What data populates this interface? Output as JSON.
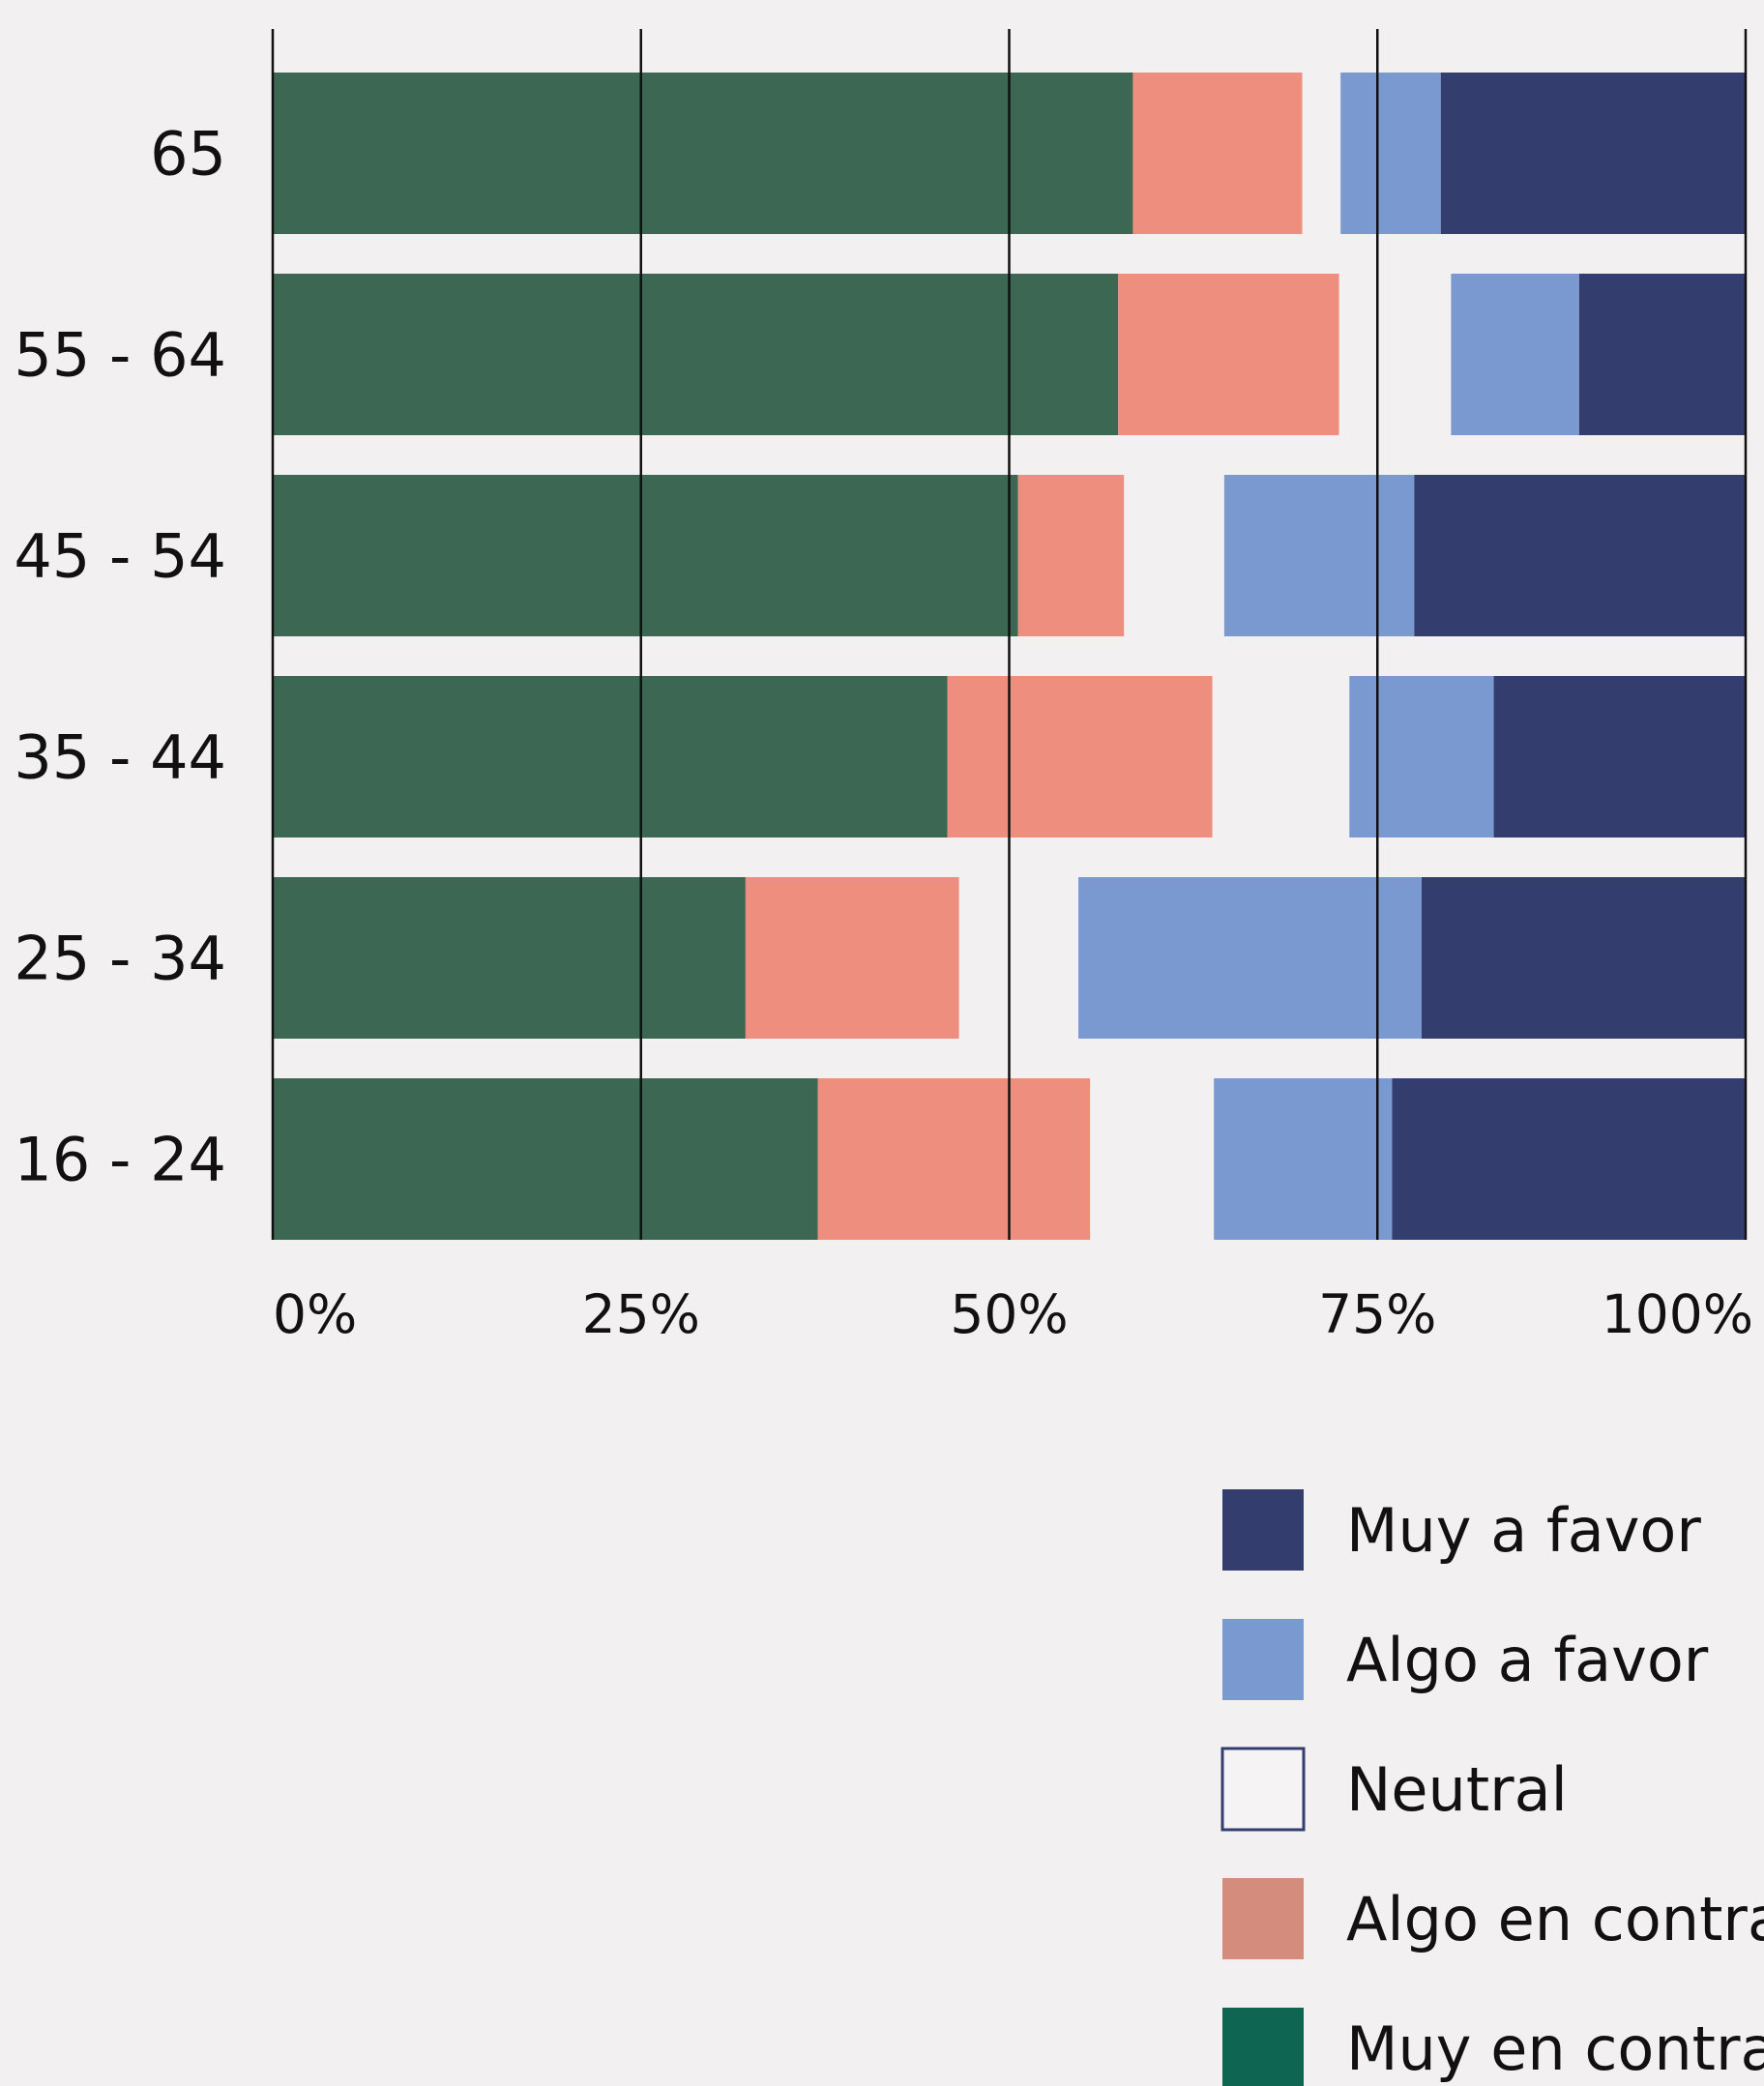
{
  "chart_data": {
    "type": "bar",
    "orientation": "horizontal",
    "stacked": true,
    "categories": [
      "65",
      "55 - 64",
      "45 - 54",
      "35 - 44",
      "25 - 34",
      "16 - 24"
    ],
    "series": [
      {
        "name": "Muy en contra",
        "values": [
          58.4,
          57.4,
          50.6,
          45.8,
          32.1,
          37.0
        ]
      },
      {
        "name": "Algo en contra",
        "values": [
          11.5,
          15.0,
          7.2,
          18.0,
          14.5,
          18.5
        ]
      },
      {
        "name": "Neutral",
        "values": [
          2.6,
          7.6,
          6.8,
          9.3,
          8.1,
          8.4
        ]
      },
      {
        "name": "Algo a favor",
        "values": [
          6.8,
          8.7,
          12.9,
          9.8,
          23.3,
          12.1
        ]
      },
      {
        "name": "Muy a favor",
        "values": [
          20.7,
          11.3,
          22.5,
          17.1,
          22.0,
          24.0
        ]
      }
    ],
    "series_colors": {
      "Muy a favor": "#343e6e",
      "Algo a favor": "#7a99d1",
      "Neutral": "#f2f0f1",
      "Algo en contra": "#ee8e7e",
      "Muy en contra": "#3c6753"
    },
    "legend_colors": {
      "Muy a favor": "#343e6e",
      "Algo a favor": "#7a99d1",
      "Neutral": "#f5f3f4",
      "Algo en contra": "#d48c7d",
      "Muy en contra": "#0e6652"
    },
    "xlim": [
      0,
      100
    ],
    "x_ticks": [
      "0%",
      "25%",
      "50%",
      "75%",
      "100%"
    ],
    "grid": true,
    "legend_position": "bottom-right",
    "legend_order": [
      "Muy a favor",
      "Algo a favor",
      "Neutral",
      "Algo en contra",
      "Muy en contra"
    ],
    "title": "",
    "xlabel": "",
    "ylabel": ""
  }
}
